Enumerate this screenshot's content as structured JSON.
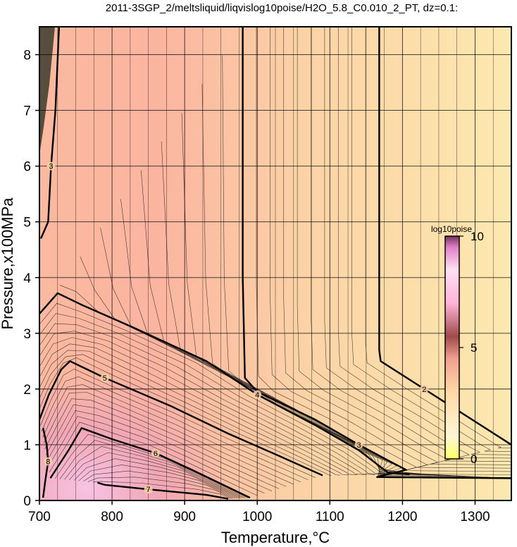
{
  "chart_data": {
    "type": "heatmap",
    "title": "2011-3SGP_2/meltsliquid/liqvislog10poise/H2O_5.8_C0.010_2_PT, dz=0.1:",
    "xlabel": "Temperature,°C",
    "ylabel": "Pressure,x100MPa",
    "xlim": [
      700,
      1350
    ],
    "ylim": [
      0,
      8.5
    ],
    "x_ticks": [
      700,
      800,
      900,
      1000,
      1100,
      1200,
      1300
    ],
    "y_ticks": [
      0,
      1,
      2,
      3,
      4,
      5,
      6,
      7,
      8
    ],
    "grid": true,
    "colorbar": {
      "title": "log10poise",
      "range": [
        0,
        10
      ],
      "ticks": [
        0,
        5,
        10
      ],
      "colors": [
        "#ffff66",
        "#fff2cc",
        "#ffd9a6",
        "#f0a090",
        "#c25a5a",
        "#ffb3d9",
        "#ffccee",
        "#e680cc",
        "#803366"
      ]
    },
    "background_colors": {
      "low_viscosity": "#fde4aa",
      "mid_viscosity": "#fbb9a0",
      "high_viscosity": "#f2a8ba",
      "very_high_viscosity": "#f8c3e4"
    },
    "contours": [
      {
        "level": 2,
        "label": "2",
        "points": [
          [
            1168,
            8.5
          ],
          [
            1168,
            2.7
          ],
          [
            1170,
            2.5
          ],
          [
            1230,
            2.0
          ],
          [
            1290,
            1.5
          ],
          [
            1350,
            1.0
          ]
        ]
      },
      {
        "level": 3,
        "label": "3",
        "points": [
          [
            980,
            8.5
          ],
          [
            980,
            4.0
          ],
          [
            983,
            2.2
          ],
          [
            1000,
            1.95
          ],
          [
            1080,
            1.45
          ],
          [
            1140,
            1.0
          ],
          [
            1180,
            0.72
          ],
          [
            1205,
            0.55
          ],
          [
            1165,
            0.42
          ],
          [
            1350,
            0.4
          ]
        ]
      },
      {
        "level": 3,
        "label": "3",
        "points": [
          [
            727,
            8.5
          ],
          [
            722,
            7.0
          ],
          [
            716,
            6.0
          ],
          [
            712,
            5.0
          ],
          [
            702,
            4.7
          ]
        ]
      },
      {
        "level": 4,
        "label": "4",
        "points": [
          [
            700,
            3.35
          ],
          [
            725,
            3.72
          ],
          [
            760,
            3.5
          ],
          [
            830,
            3.1
          ],
          [
            930,
            2.5
          ],
          [
            1000,
            1.9
          ],
          [
            1080,
            1.35
          ],
          [
            1140,
            0.9
          ],
          [
            1170,
            0.6
          ],
          [
            1180,
            0.5
          ],
          [
            1210,
            0.47
          ]
        ]
      },
      {
        "level": 5,
        "label": "5",
        "points": [
          [
            700,
            1.45
          ],
          [
            713,
            1.9
          ],
          [
            730,
            2.35
          ],
          [
            742,
            2.5
          ],
          [
            790,
            2.2
          ],
          [
            880,
            1.7
          ],
          [
            960,
            1.2
          ],
          [
            1030,
            0.8
          ],
          [
            1090,
            0.45
          ]
        ]
      },
      {
        "level": 6,
        "label": "6",
        "points": [
          [
            715,
            0.4
          ],
          [
            740,
            0.9
          ],
          [
            758,
            1.3
          ],
          [
            800,
            1.1
          ],
          [
            860,
            0.85
          ],
          [
            910,
            0.55
          ],
          [
            950,
            0.3
          ],
          [
            990,
            0.05
          ]
        ]
      },
      {
        "level": 7,
        "label": "7",
        "points": [
          [
            780,
            0.32
          ],
          [
            790,
            0.28
          ],
          [
            850,
            0.2
          ],
          [
            930,
            0.1
          ],
          [
            960,
            0.03
          ]
        ]
      },
      {
        "level": 8,
        "label": "8",
        "points": [
          [
            705,
            0.05
          ],
          [
            708,
            0.35
          ],
          [
            712,
            0.7
          ],
          [
            710,
            1.0
          ],
          [
            705,
            1.3
          ]
        ]
      }
    ]
  }
}
